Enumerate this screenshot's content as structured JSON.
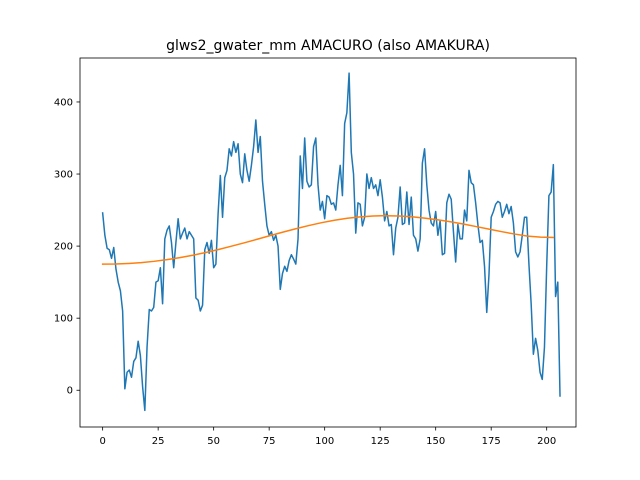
{
  "chart_data": {
    "type": "line",
    "title": "glws2_gwater_mm AMACURO (also AMAKURA)",
    "xlabel": "",
    "ylabel": "",
    "xlim": [
      -10.2,
      213.2
    ],
    "ylim": [
      -51,
      461
    ],
    "xticks": [
      0,
      25,
      50,
      75,
      100,
      125,
      150,
      175,
      200
    ],
    "yticks": [
      0,
      100,
      200,
      300,
      400
    ],
    "grid": false,
    "series": [
      {
        "color": "#1f77b4",
        "x_start": 0,
        "x_step": 1,
        "values": [
          246,
          215,
          197,
          195,
          183,
          198,
          168,
          150,
          138,
          110,
          2,
          25,
          28,
          18,
          40,
          45,
          68,
          48,
          5,
          -28,
          60,
          112,
          110,
          115,
          150,
          152,
          170,
          120,
          210,
          222,
          228,
          205,
          170,
          205,
          238,
          210,
          218,
          225,
          210,
          220,
          215,
          210,
          128,
          125,
          110,
          118,
          195,
          205,
          190,
          208,
          170,
          175,
          245,
          298,
          240,
          295,
          305,
          335,
          325,
          345,
          330,
          342,
          300,
          288,
          328,
          305,
          290,
          312,
          338,
          375,
          330,
          352,
          290,
          258,
          228,
          215,
          220,
          208,
          215,
          200,
          140,
          162,
          172,
          165,
          180,
          188,
          182,
          175,
          210,
          325,
          280,
          350,
          290,
          282,
          285,
          338,
          350,
          285,
          250,
          262,
          238,
          270,
          268,
          258,
          260,
          250,
          285,
          312,
          270,
          370,
          385,
          440,
          330,
          300,
          218,
          260,
          258,
          228,
          240,
          300,
          280,
          295,
          280,
          285,
          270,
          292,
          268,
          235,
          248,
          228,
          230,
          188,
          225,
          240,
          282,
          230,
          232,
          275,
          230,
          268,
          215,
          210,
          193,
          210,
          315,
          335,
          285,
          250,
          232,
          228,
          248,
          215,
          235,
          188,
          190,
          260,
          272,
          265,
          220,
          178,
          230,
          210,
          210,
          250,
          235,
          305,
          288,
          285,
          260,
          230,
          205,
          208,
          172,
          108,
          160,
          240,
          248,
          258,
          262,
          260,
          240,
          248,
          258,
          245,
          255,
          232,
          192,
          185,
          192,
          215,
          240,
          240,
          175,
          120,
          50,
          72,
          55,
          25,
          15,
          60,
          172,
          270,
          275,
          313,
          130,
          150,
          -8
        ]
      },
      {
        "color": "#ff7f0e",
        "x_start": 0,
        "x_step": 1,
        "values": [
          175,
          175.2,
          175.9,
          177.1,
          178.9,
          181.2,
          184,
          187.3,
          191.1,
          195.3,
          199.9,
          204.6,
          209.5,
          214.5,
          219.4,
          224.1,
          228.5,
          232.5,
          235.9,
          238.6,
          240.6,
          241.8,
          242.2,
          241.8,
          240.7,
          238.9,
          236.6,
          233.8,
          230.6,
          227.1,
          223.5,
          220,
          216.7,
          213.9,
          212.4,
          212
        ]
      }
    ]
  }
}
